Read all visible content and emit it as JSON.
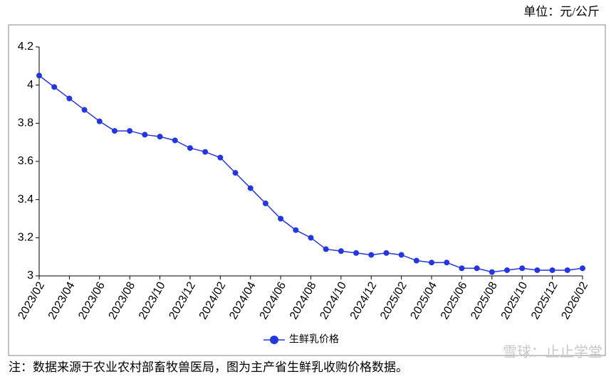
{
  "chart_data": {
    "type": "line",
    "unit_label": "单位：元/公斤",
    "note": "注：数据来源于农业农村部畜牧兽医局，图为主产省生鲜乳收购价格数据。",
    "watermark": "雪球：止止学堂",
    "categories": [
      "2023/02",
      null,
      "2023/04",
      null,
      "2023/06",
      null,
      "2023/08",
      null,
      "2023/10",
      null,
      "2023/12",
      null,
      "2024/02",
      null,
      "2024/04",
      null,
      "2024/06",
      null,
      "2024/08",
      null,
      "2024/10",
      null,
      "2024/12",
      null,
      "2025/02",
      null,
      "2025/04",
      null,
      "2025/06",
      null,
      "2025/08",
      null,
      "2025/10",
      null,
      "2025/12",
      null,
      "2026/02"
    ],
    "series": [
      {
        "name": "生鲜乳价格",
        "color": "#2336e0",
        "values": [
          4.05,
          3.99,
          3.93,
          3.87,
          3.81,
          3.76,
          3.76,
          3.74,
          3.73,
          3.71,
          3.67,
          3.65,
          3.62,
          3.54,
          3.46,
          3.38,
          3.3,
          3.24,
          3.2,
          3.14,
          3.13,
          3.12,
          3.11,
          3.12,
          3.11,
          3.08,
          3.07,
          3.07,
          3.04,
          3.04,
          3.02,
          3.03,
          3.04,
          3.03,
          3.03,
          3.03,
          3.04
        ]
      }
    ],
    "ylim": [
      3,
      4.2
    ],
    "yticks": [
      3,
      3.2,
      3.4,
      3.6,
      3.8,
      4,
      4.2
    ],
    "grid": false,
    "legend": "bottom"
  }
}
